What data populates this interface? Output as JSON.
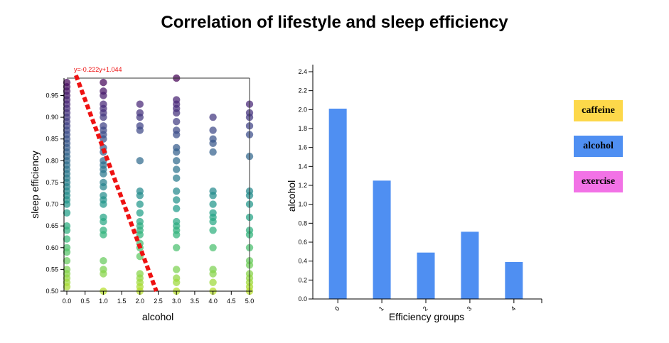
{
  "title": "Correlation of lifestyle and sleep efficiency",
  "legend": {
    "items": [
      {
        "label": "caffeine",
        "color": "#fdd84a"
      },
      {
        "label": "alcohol",
        "color": "#4f8ff2"
      },
      {
        "label": "exercise",
        "color": "#f272e6"
      }
    ]
  },
  "chart_data": [
    {
      "type": "scatter",
      "xlabel": "alcohol",
      "ylabel": "sleep efficiency",
      "xlim": [
        0,
        5
      ],
      "ylim": [
        0.5,
        0.99
      ],
      "x_ticks": [
        "0.0",
        "0.5",
        "1.0",
        "1.5",
        "2.0",
        "2.5",
        "3.0",
        "3.5",
        "4.0",
        "4.5",
        "5.0"
      ],
      "y_ticks": [
        "0.50",
        "0.55",
        "0.60",
        "0.65",
        "0.70",
        "0.75",
        "0.80",
        "0.85",
        "0.90",
        "0.95"
      ],
      "color_scale": "viridis",
      "regression": {
        "label": "y=-0.222y+1.044",
        "slope": -0.222,
        "intercept": 1.044,
        "color": "#ee1111"
      },
      "points": [
        [
          0,
          0.98
        ],
        [
          0,
          0.97
        ],
        [
          0,
          0.96
        ],
        [
          0,
          0.95
        ],
        [
          0,
          0.94
        ],
        [
          0,
          0.93
        ],
        [
          0,
          0.92
        ],
        [
          0,
          0.91
        ],
        [
          0,
          0.9
        ],
        [
          0,
          0.89
        ],
        [
          0,
          0.88
        ],
        [
          0,
          0.87
        ],
        [
          0,
          0.86
        ],
        [
          0,
          0.85
        ],
        [
          0,
          0.84
        ],
        [
          0,
          0.83
        ],
        [
          0,
          0.82
        ],
        [
          0,
          0.81
        ],
        [
          0,
          0.8
        ],
        [
          0,
          0.79
        ],
        [
          0,
          0.78
        ],
        [
          0,
          0.77
        ],
        [
          0,
          0.76
        ],
        [
          0,
          0.75
        ],
        [
          0,
          0.74
        ],
        [
          0,
          0.73
        ],
        [
          0,
          0.72
        ],
        [
          0,
          0.71
        ],
        [
          0,
          0.7
        ],
        [
          0,
          0.68
        ],
        [
          0,
          0.65
        ],
        [
          0,
          0.64
        ],
        [
          0,
          0.62
        ],
        [
          0,
          0.6
        ],
        [
          0,
          0.59
        ],
        [
          0,
          0.57
        ],
        [
          0,
          0.55
        ],
        [
          0,
          0.54
        ],
        [
          0,
          0.53
        ],
        [
          0,
          0.52
        ],
        [
          0,
          0.51
        ],
        [
          1,
          0.98
        ],
        [
          1,
          0.96
        ],
        [
          1,
          0.95
        ],
        [
          1,
          0.93
        ],
        [
          1,
          0.92
        ],
        [
          1,
          0.91
        ],
        [
          1,
          0.9
        ],
        [
          1,
          0.88
        ],
        [
          1,
          0.87
        ],
        [
          1,
          0.86
        ],
        [
          1,
          0.85
        ],
        [
          1,
          0.83
        ],
        [
          1,
          0.82
        ],
        [
          1,
          0.8
        ],
        [
          1,
          0.79
        ],
        [
          1,
          0.78
        ],
        [
          1,
          0.77
        ],
        [
          1,
          0.75
        ],
        [
          1,
          0.74
        ],
        [
          1,
          0.72
        ],
        [
          1,
          0.71
        ],
        [
          1,
          0.7
        ],
        [
          1,
          0.67
        ],
        [
          1,
          0.66
        ],
        [
          1,
          0.64
        ],
        [
          1,
          0.63
        ],
        [
          1,
          0.57
        ],
        [
          1,
          0.55
        ],
        [
          1,
          0.54
        ],
        [
          1,
          0.5
        ],
        [
          2,
          0.93
        ],
        [
          2,
          0.91
        ],
        [
          2,
          0.9
        ],
        [
          2,
          0.88
        ],
        [
          2,
          0.87
        ],
        [
          2,
          0.8
        ],
        [
          2,
          0.73
        ],
        [
          2,
          0.72
        ],
        [
          2,
          0.7
        ],
        [
          2,
          0.68
        ],
        [
          2,
          0.66
        ],
        [
          2,
          0.65
        ],
        [
          2,
          0.64
        ],
        [
          2,
          0.63
        ],
        [
          2,
          0.61
        ],
        [
          2,
          0.6
        ],
        [
          2,
          0.58
        ],
        [
          2,
          0.54
        ],
        [
          2,
          0.53
        ],
        [
          2,
          0.52
        ],
        [
          2,
          0.51
        ],
        [
          2,
          0.5
        ],
        [
          3,
          0.99
        ],
        [
          3,
          0.94
        ],
        [
          3,
          0.93
        ],
        [
          3,
          0.92
        ],
        [
          3,
          0.91
        ],
        [
          3,
          0.89
        ],
        [
          3,
          0.87
        ],
        [
          3,
          0.86
        ],
        [
          3,
          0.83
        ],
        [
          3,
          0.82
        ],
        [
          3,
          0.8
        ],
        [
          3,
          0.78
        ],
        [
          3,
          0.76
        ],
        [
          3,
          0.73
        ],
        [
          3,
          0.71
        ],
        [
          3,
          0.69
        ],
        [
          3,
          0.66
        ],
        [
          3,
          0.65
        ],
        [
          3,
          0.64
        ],
        [
          3,
          0.63
        ],
        [
          3,
          0.6
        ],
        [
          3,
          0.55
        ],
        [
          3,
          0.53
        ],
        [
          3,
          0.52
        ],
        [
          3,
          0.5
        ],
        [
          4,
          0.9
        ],
        [
          4,
          0.87
        ],
        [
          4,
          0.85
        ],
        [
          4,
          0.84
        ],
        [
          4,
          0.82
        ],
        [
          4,
          0.73
        ],
        [
          4,
          0.72
        ],
        [
          4,
          0.7
        ],
        [
          4,
          0.68
        ],
        [
          4,
          0.67
        ],
        [
          4,
          0.66
        ],
        [
          4,
          0.64
        ],
        [
          4,
          0.6
        ],
        [
          4,
          0.55
        ],
        [
          4,
          0.54
        ],
        [
          4,
          0.52
        ],
        [
          4,
          0.5
        ],
        [
          5,
          0.93
        ],
        [
          5,
          0.91
        ],
        [
          5,
          0.9
        ],
        [
          5,
          0.88
        ],
        [
          5,
          0.86
        ],
        [
          5,
          0.81
        ],
        [
          5,
          0.73
        ],
        [
          5,
          0.72
        ],
        [
          5,
          0.7
        ],
        [
          5,
          0.67
        ],
        [
          5,
          0.64
        ],
        [
          5,
          0.63
        ],
        [
          5,
          0.6
        ],
        [
          5,
          0.57
        ],
        [
          5,
          0.56
        ],
        [
          5,
          0.54
        ],
        [
          5,
          0.53
        ],
        [
          5,
          0.52
        ],
        [
          5,
          0.51
        ],
        [
          5,
          0.5
        ]
      ]
    },
    {
      "type": "bar",
      "xlabel": "Efficiency groups",
      "ylabel": "alcohol",
      "categories": [
        "0",
        "1",
        "2",
        "3",
        "4"
      ],
      "values": [
        2.01,
        1.25,
        0.49,
        0.71,
        0.39
      ],
      "ylim": [
        0,
        2.4
      ],
      "y_ticks": [
        "0.0",
        "0.2",
        "0.4",
        "0.6",
        "0.8",
        "1.0",
        "1.2",
        "1.4",
        "1.6",
        "1.8",
        "2.0",
        "2.2",
        "2.4"
      ],
      "color": "#4f8ff2"
    }
  ]
}
